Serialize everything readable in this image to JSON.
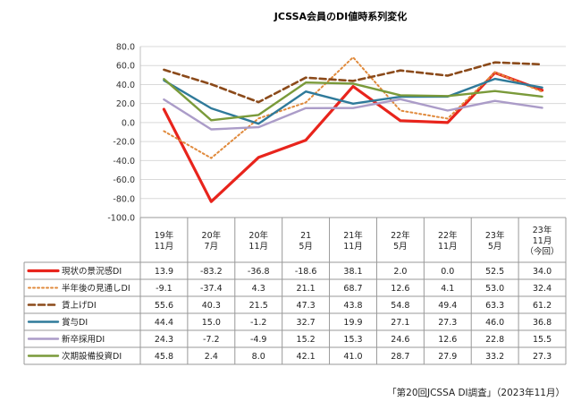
{
  "chart_data": {
    "type": "line",
    "title": "JCSSA会員のDI値時系列変化",
    "ylim": [
      -100,
      80
    ],
    "yticks": [
      "80.0",
      "60.0",
      "40.0",
      "20.0",
      "0.0",
      "-20.0",
      "-40.0",
      "-60.0",
      "-80.0",
      "-100.0"
    ],
    "categories": [
      [
        "19年",
        "11月"
      ],
      [
        "20年",
        "7月"
      ],
      [
        "20年",
        "11月"
      ],
      [
        "21",
        "5月"
      ],
      [
        "21年",
        "11月"
      ],
      [
        "22年",
        "5月"
      ],
      [
        "22年",
        "11月"
      ],
      [
        "23年",
        "5月"
      ],
      [
        "23年",
        "11月",
        "（今回）"
      ]
    ],
    "series": [
      {
        "name": "現状の景況感DI",
        "color": "#e8241c",
        "dash": "solid",
        "width": 3.2,
        "values": [
          13.9,
          -83.2,
          -36.8,
          -18.6,
          38.1,
          2.0,
          0.0,
          52.5,
          34.0
        ],
        "labels": [
          "13.9",
          "-83.2",
          "-36.8",
          "-18.6",
          "38.1",
          "2.0",
          "0.0",
          "52.5",
          "34.0"
        ]
      },
      {
        "name": "半年後の見通しDI",
        "color": "#e08a3c",
        "dash": "dot",
        "width": 2,
        "values": [
          -9.1,
          -37.4,
          4.3,
          21.1,
          68.7,
          12.6,
          4.1,
          53.0,
          32.4
        ],
        "labels": [
          "-9.1",
          "-37.4",
          "4.3",
          "21.1",
          "68.7",
          "12.6",
          "4.1",
          "53.0",
          "32.4"
        ]
      },
      {
        "name": "賃上げDI",
        "color": "#8b4a1a",
        "dash": "dash",
        "width": 2.6,
        "values": [
          55.6,
          40.3,
          21.5,
          47.3,
          43.8,
          54.8,
          49.4,
          63.3,
          61.2
        ],
        "labels": [
          "55.6",
          "40.3",
          "21.5",
          "47.3",
          "43.8",
          "54.8",
          "49.4",
          "63.3",
          "61.2"
        ]
      },
      {
        "name": "賞与DI",
        "color": "#2f7a9a",
        "dash": "solid",
        "width": 2.4,
        "values": [
          44.4,
          15.0,
          -1.2,
          32.7,
          19.9,
          27.1,
          27.3,
          46.0,
          36.8
        ],
        "labels": [
          "44.4",
          "15.0",
          "-1.2",
          "32.7",
          "19.9",
          "27.1",
          "27.3",
          "46.0",
          "36.8"
        ]
      },
      {
        "name": "新卒採用DI",
        "color": "#ab9cc8",
        "dash": "solid",
        "width": 2.4,
        "values": [
          24.3,
          -7.2,
          -4.9,
          15.2,
          15.3,
          24.6,
          12.6,
          22.8,
          15.5
        ],
        "labels": [
          "24.3",
          "-7.2",
          "-4.9",
          "15.2",
          "15.3",
          "24.6",
          "12.6",
          "22.8",
          "15.5"
        ]
      },
      {
        "name": "次期設備投資DI",
        "color": "#7a9a3a",
        "dash": "solid",
        "width": 2.4,
        "values": [
          45.8,
          2.4,
          8.0,
          42.1,
          41.0,
          28.7,
          27.9,
          33.2,
          27.3
        ],
        "labels": [
          "45.8",
          "2.4",
          "8.0",
          "42.1",
          "41.0",
          "28.7",
          "27.9",
          "33.2",
          "27.3"
        ]
      }
    ]
  },
  "footer": {
    "source": "「第20回JCSSA DI調査」（2023年11月）"
  }
}
